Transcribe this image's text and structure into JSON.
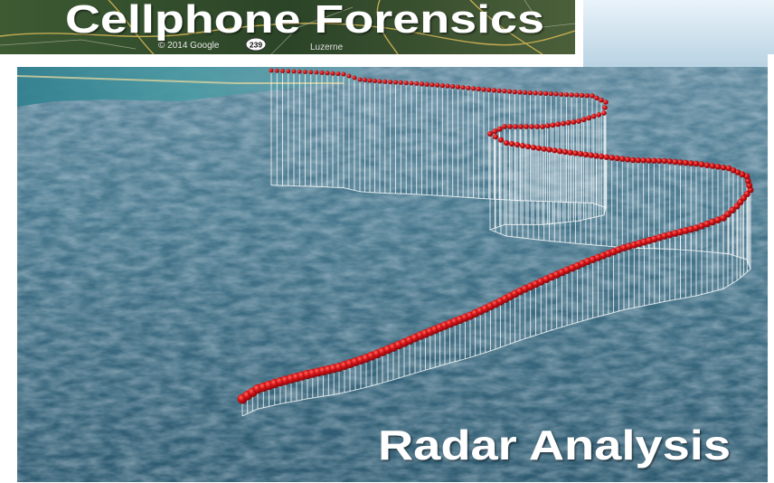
{
  "headline": "Cellphone Forensics",
  "caption": "Radar Analysis",
  "map_strip": {
    "attribution": "© 2014 Google",
    "road_shield": "239",
    "place_label": "Luzerne"
  },
  "colors": {
    "track_point": "#c40d10",
    "curtain_line": "#ffffff",
    "ocean": "#3f6e86",
    "map_strip": "#2f4a2a",
    "sky": "#d8e8f2"
  }
}
